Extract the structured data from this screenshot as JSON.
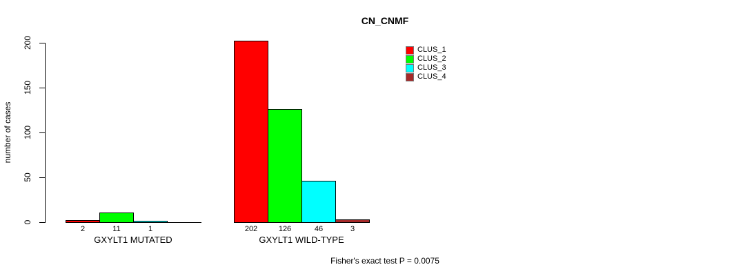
{
  "chart_data": {
    "type": "bar",
    "title": "CN_CNMF",
    "ylabel": "number of cases",
    "ylim": [
      0,
      200
    ],
    "yticks": [
      0,
      50,
      100,
      150,
      200
    ],
    "grid": false,
    "legend_position": "top-right-inside",
    "groups": [
      "GXYLT1 MUTATED",
      "GXYLT1 WILD-TYPE"
    ],
    "series": [
      {
        "name": "CLUS_1",
        "color": "#ff0000",
        "values": [
          2,
          202
        ]
      },
      {
        "name": "CLUS_2",
        "color": "#00ff00",
        "values": [
          11,
          126
        ]
      },
      {
        "name": "CLUS_3",
        "color": "#00ffff",
        "values": [
          1,
          46
        ]
      },
      {
        "name": "CLUS_4",
        "color": "#a52a2a",
        "values": [
          0,
          3
        ]
      }
    ],
    "annotation": "Fisher's exact test P = 0.0075"
  }
}
